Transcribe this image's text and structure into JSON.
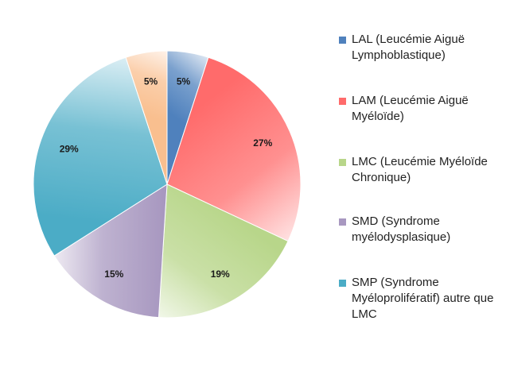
{
  "chart_data": {
    "type": "pie",
    "title": "",
    "slices": [
      {
        "label": "LAL (Leucémie Aiguë Lymphoblastique)",
        "value": 5,
        "data_label": "5%",
        "color": "#4f81bd"
      },
      {
        "label": "LAM (Leucémie Aiguë Myéloïde)",
        "value": 27,
        "data_label": "27%",
        "color": "#ff6b6b"
      },
      {
        "label": "LMC (Leucémie Myéloïde Chronique)",
        "value": 19,
        "data_label": "19%",
        "color": "#b8d68a"
      },
      {
        "label": "SMD (Syndrome myélodysplasique)",
        "value": 15,
        "data_label": "15%",
        "color": "#a898c0"
      },
      {
        "label": "SMP (Syndrome Myéloprolifératif) autre que LMC",
        "value": 29,
        "data_label": "29%",
        "color": "#4bacc6"
      },
      {
        "label": "",
        "value": 5,
        "data_label": "5%",
        "color": "#f9bf8f"
      }
    ],
    "legend_position": "right"
  }
}
